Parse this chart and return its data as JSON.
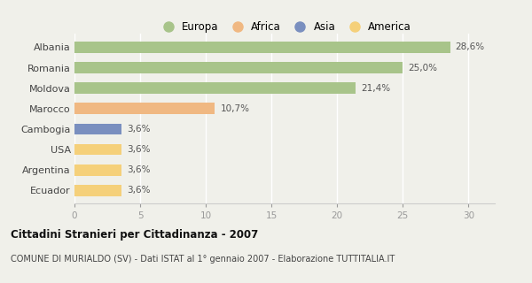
{
  "categories": [
    "Albania",
    "Romania",
    "Moldova",
    "Marocco",
    "Cambogia",
    "USA",
    "Argentina",
    "Ecuador"
  ],
  "values": [
    28.6,
    25.0,
    21.4,
    10.7,
    3.6,
    3.6,
    3.6,
    3.6
  ],
  "labels": [
    "28,6%",
    "25,0%",
    "21,4%",
    "10,7%",
    "3,6%",
    "3,6%",
    "3,6%",
    "3,6%"
  ],
  "colors": [
    "#a8c48a",
    "#a8c48a",
    "#a8c48a",
    "#f0b882",
    "#7a8fbf",
    "#f5d07a",
    "#f5d07a",
    "#f5d07a"
  ],
  "legend_labels": [
    "Europa",
    "Africa",
    "Asia",
    "America"
  ],
  "legend_colors": [
    "#a8c48a",
    "#f0b882",
    "#7a8fbf",
    "#f5d07a"
  ],
  "xlim": [
    0,
    32
  ],
  "xticks": [
    0,
    5,
    10,
    15,
    20,
    25,
    30
  ],
  "title": "Cittadini Stranieri per Cittadinanza - 2007",
  "subtitle": "COMUNE DI MURIALDO (SV) - Dati ISTAT al 1° gennaio 2007 - Elaborazione TUTTITALIA.IT",
  "background_color": "#f0f0ea",
  "bar_height": 0.55
}
